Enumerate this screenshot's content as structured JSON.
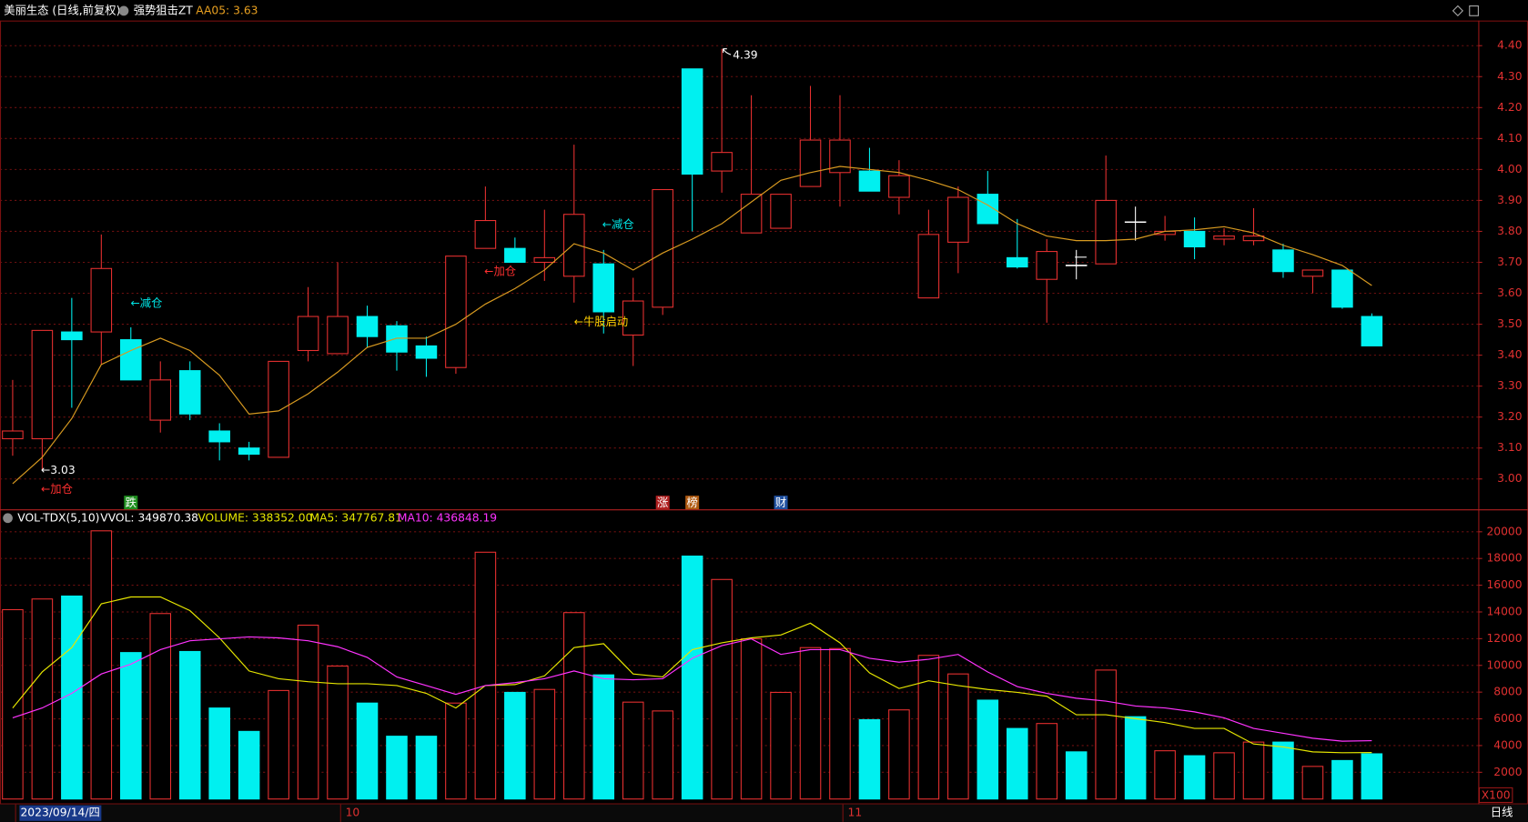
{
  "header": {
    "stock": "美丽生态 (日线,前复权)",
    "indicator": "强势狙击ZT",
    "indicator_value": "AA05: 3.63",
    "period": "日线"
  },
  "chart_data": [
    {
      "type": "candlestick",
      "open": [
        3.13,
        3.13,
        3.475,
        3.475,
        3.45,
        3.19,
        3.35,
        3.155,
        3.1,
        3.07,
        3.415,
        3.405,
        3.525,
        3.495,
        3.43,
        3.36,
        3.745,
        3.745,
        3.7,
        3.655,
        3.695,
        3.465,
        3.555,
        4.325,
        3.995,
        3.795,
        3.81,
        3.945,
        3.99,
        3.995,
        3.91,
        3.585,
        3.765,
        3.92,
        3.715,
        3.645,
        3.69,
        3.695,
        3.83,
        3.79,
        3.8,
        3.775,
        3.77,
        3.74,
        3.655,
        3.675,
        3.525
      ],
      "high": [
        3.32,
        3.48,
        3.585,
        3.79,
        3.49,
        3.38,
        3.38,
        3.18,
        3.12,
        3.38,
        3.62,
        3.7,
        3.56,
        3.51,
        3.46,
        3.72,
        3.945,
        3.78,
        3.87,
        4.08,
        3.74,
        3.65,
        3.935,
        4.325,
        4.39,
        4.24,
        3.92,
        4.27,
        4.24,
        4.07,
        4.03,
        3.87,
        3.945,
        3.995,
        3.84,
        3.775,
        3.74,
        4.045,
        3.88,
        3.85,
        3.845,
        3.81,
        3.875,
        3.76,
        3.675,
        3.675,
        3.535
      ],
      "low": [
        3.075,
        3.03,
        3.23,
        3.37,
        3.32,
        3.15,
        3.19,
        3.06,
        3.06,
        3.07,
        3.38,
        3.405,
        3.425,
        3.35,
        3.33,
        3.34,
        3.745,
        3.7,
        3.64,
        3.57,
        3.47,
        3.365,
        3.53,
        3.8,
        3.925,
        3.795,
        3.81,
        3.945,
        3.88,
        3.93,
        3.855,
        3.585,
        3.665,
        3.825,
        3.68,
        3.505,
        3.645,
        3.695,
        3.77,
        3.77,
        3.71,
        3.755,
        3.755,
        3.65,
        3.6,
        3.55,
        3.43
      ],
      "close": [
        3.155,
        3.48,
        3.45,
        3.68,
        3.32,
        3.32,
        3.21,
        3.12,
        3.08,
        3.38,
        3.525,
        3.525,
        3.46,
        3.41,
        3.39,
        3.72,
        3.835,
        3.7,
        3.715,
        3.855,
        3.54,
        3.575,
        3.935,
        3.985,
        4.055,
        3.92,
        3.92,
        4.095,
        4.095,
        3.93,
        3.98,
        3.79,
        3.91,
        3.825,
        3.685,
        3.735,
        3.69,
        3.9,
        3.83,
        3.8,
        3.75,
        3.785,
        3.785,
        3.67,
        3.675,
        3.555,
        3.43
      ],
      "up_color": "#e83030",
      "down_color": "#00f0f0",
      "doji_color": "#ffffff",
      "lines": [
        {
          "color": "#d89a20",
          "values": [
            2.985,
            3.07,
            3.195,
            3.37,
            3.415,
            3.455,
            3.415,
            3.335,
            3.21,
            3.22,
            3.275,
            3.345,
            3.425,
            3.455,
            3.455,
            3.5,
            3.565,
            3.615,
            3.675,
            3.76,
            3.73,
            3.675,
            3.73,
            3.775,
            3.825,
            3.895,
            3.965,
            3.99,
            4.01,
            4.0,
            3.99,
            3.965,
            3.935,
            3.885,
            3.825,
            3.785,
            3.77,
            3.77,
            3.775,
            3.8,
            3.805,
            3.815,
            3.795,
            3.755,
            3.725,
            3.69,
            3.625
          ]
        }
      ],
      "ylim": [
        2.905,
        4.478
      ],
      "yticks": [
        {
          "value": 3,
          "label": "3.00"
        },
        {
          "value": 3.1,
          "label": "3.10"
        },
        {
          "value": 3.2,
          "label": "3.20"
        },
        {
          "value": 3.3,
          "label": "3.30"
        },
        {
          "value": 3.4,
          "label": "3.40"
        },
        {
          "value": 3.5,
          "label": "3.50"
        },
        {
          "value": 3.6,
          "label": "3.60"
        },
        {
          "value": 3.7,
          "label": "3.70"
        },
        {
          "value": 3.8,
          "label": "3.80"
        },
        {
          "value": 3.9,
          "label": "3.90"
        },
        {
          "value": 4,
          "label": "4.00"
        },
        {
          "value": 4.1,
          "label": "4.10"
        },
        {
          "value": 4.2,
          "label": "4.20"
        },
        {
          "value": 4.3,
          "label": "4.30"
        },
        {
          "value": 4.4,
          "label": "4.40"
        }
      ],
      "grid": true,
      "annotations": [
        {
          "text": "←3.03",
          "color": "#ffffff"
        },
        {
          "text": "←加仓",
          "color": "#ff3030"
        },
        {
          "text": "←减仓",
          "color": "#00e5e5"
        },
        {
          "text": "←加仓",
          "color": "#ff3030"
        },
        {
          "text": "←减仓",
          "color": "#00e5e5"
        },
        {
          "text": "←牛股启动",
          "color": "#ffd000"
        },
        {
          "text": "4.39",
          "color": "#ffffff"
        }
      ],
      "flags": [
        {
          "label": "跌",
          "color": "#1f8f1f"
        },
        {
          "label": "涨",
          "color": "#b02020"
        },
        {
          "label": "榜",
          "color": "#b05a10"
        },
        {
          "label": "财",
          "color": "#2050a0"
        }
      ]
    },
    {
      "type": "volume",
      "title": "VOL-TDX(5,10)",
      "stats": [
        {
          "text": "VVOL: 349870.38",
          "color": "#ffffff"
        },
        {
          "text": "VOLUME: 338352.00",
          "color": "#e6e600"
        },
        {
          "text": "MA5: 347767.81",
          "color": "#e6e600"
        },
        {
          "text": "MA10: 436848.19",
          "color": "#ff33ff"
        }
      ],
      "categories": [
        "2023/09/14/四",
        null,
        null,
        null,
        null,
        null,
        null,
        null,
        null,
        null,
        null,
        "10",
        null,
        null,
        null,
        null,
        null,
        null,
        null,
        null,
        null,
        null,
        null,
        null,
        null,
        null,
        null,
        null,
        "11",
        null,
        null,
        null,
        null,
        null,
        null,
        null,
        null,
        null,
        null,
        null,
        null,
        null,
        null,
        null,
        null,
        null,
        null
      ],
      "values": [
        14170,
        14970,
        15190,
        20070,
        10960,
        13880,
        11040,
        6810,
        5060,
        8120,
        13010,
        9950,
        7180,
        4700,
        4700,
        7180,
        18470,
        7980,
        8200,
        13950,
        9290,
        7250,
        6590,
        18180,
        16430,
        11990,
        7980,
        11330,
        11260,
        5940,
        6670,
        10750,
        9360,
        7400,
        5280,
        5650,
        3530,
        9650,
        6160,
        3610,
        3240,
        3460,
        4260,
        4260,
        2440,
        2880,
        3383.52
      ],
      "lines": [
        {
          "color": "#e6e600",
          "values": [
            6810,
            9510,
            11330,
            14610,
            15120,
            15120,
            14100,
            12060,
            9580,
            9000,
            8780,
            8630,
            8630,
            8490,
            7910,
            6810,
            8490,
            8560,
            9220,
            11330,
            11620,
            9360,
            9140,
            11180,
            11690,
            12060,
            12280,
            13160,
            11690,
            9440,
            8270,
            8850,
            8490,
            8200,
            7980,
            7690,
            6300,
            6300,
            6010,
            5720,
            5280,
            5280,
            4120,
            3900,
            3530,
            3460,
            3477.68
          ]
        },
        {
          "color": "#ff33ff",
          "values": [
            6080,
            6810,
            7910,
            9360,
            10090,
            11180,
            11840,
            11990,
            12130,
            12060,
            11840,
            11400,
            10600,
            9140,
            8490,
            7830,
            8490,
            8710,
            9000,
            9580,
            9000,
            8930,
            9000,
            10530,
            11480,
            11990,
            10820,
            11180,
            11180,
            10530,
            10240,
            10460,
            10820,
            9510,
            8420,
            7910,
            7540,
            7320,
            6960,
            6810,
            6520,
            6080,
            5280,
            4920,
            4550,
            4330,
            4368.48
          ]
        }
      ],
      "ylim": [
        0,
        20440
      ],
      "yticks": [
        2000,
        4000,
        6000,
        8000,
        10000,
        12000,
        14000,
        16000,
        18000,
        20000
      ],
      "unit_label": "X100",
      "grid": true
    }
  ]
}
